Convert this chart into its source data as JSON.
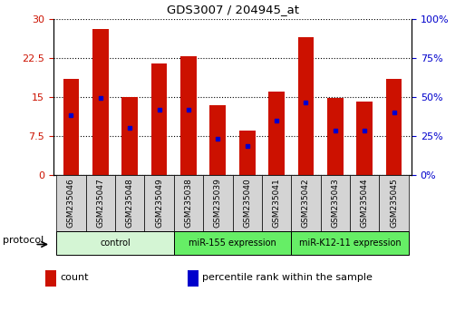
{
  "title": "GDS3007 / 204945_at",
  "samples": [
    "GSM235046",
    "GSM235047",
    "GSM235048",
    "GSM235049",
    "GSM235038",
    "GSM235039",
    "GSM235040",
    "GSM235041",
    "GSM235042",
    "GSM235043",
    "GSM235044",
    "GSM235045"
  ],
  "count_values": [
    18.5,
    28.2,
    15.0,
    21.5,
    22.8,
    13.5,
    8.5,
    16.0,
    26.5,
    14.8,
    14.2,
    18.5
  ],
  "percentile_values": [
    11.5,
    14.8,
    9.0,
    12.5,
    12.5,
    7.0,
    5.5,
    10.5,
    14.0,
    8.5,
    8.5,
    12.0
  ],
  "ylim_left": [
    0,
    30
  ],
  "ylim_right": [
    0,
    100
  ],
  "yticks_left": [
    0,
    7.5,
    15,
    22.5,
    30
  ],
  "yticks_right": [
    0,
    25,
    50,
    75,
    100
  ],
  "groups": [
    {
      "label": "control",
      "start": 0,
      "end": 4,
      "color": "#d4f5d4"
    },
    {
      "label": "miR-155 expression",
      "start": 4,
      "end": 8,
      "color": "#66ee66"
    },
    {
      "label": "miR-K12-11 expression",
      "start": 8,
      "end": 12,
      "color": "#66ee66"
    }
  ],
  "bar_color": "#cc1100",
  "dot_color": "#0000cc",
  "bar_width": 0.55,
  "tick_color_left": "#cc1100",
  "tick_color_right": "#0000cc",
  "legend_items": [
    {
      "label": "count",
      "color": "#cc1100"
    },
    {
      "label": "percentile rank within the sample",
      "color": "#0000cc"
    }
  ],
  "protocol_label": "protocol"
}
